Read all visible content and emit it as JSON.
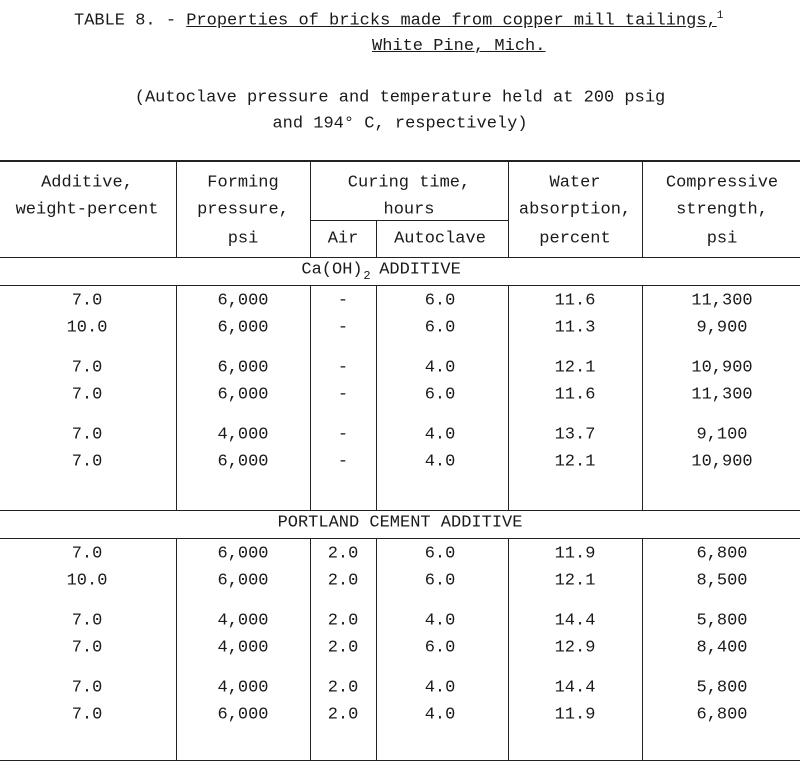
{
  "title": {
    "label": "TABLE 8. -",
    "text": "Properties of bricks made from copper mill tailings,",
    "footnote": "1",
    "line2": "White Pine, Mich."
  },
  "subtitle": [
    "(Autoclave pressure and temperature held at 200 psig",
    "and 194° C, respectively)"
  ],
  "table": {
    "header": {
      "additive": [
        "Additive,",
        "weight-percent"
      ],
      "forming_pressure": [
        "Forming",
        "pressure,",
        "psi"
      ],
      "curing_time": [
        "Curing time,",
        "hours"
      ],
      "curing_air": "Air",
      "curing_autoclave": "Autoclave",
      "water_absorption": [
        "Water",
        "absorption,",
        "percent"
      ],
      "compressive_strength": [
        "Compressive",
        "strength,",
        "psi"
      ]
    },
    "sections": [
      {
        "title": {
          "text": "Ca(OH)",
          "subscript": "2",
          "suffix": "ADDITIVE"
        },
        "groups": [
          [
            [
              "7.0",
              "6,000",
              "-",
              "6.0",
              "11.6",
              "11,300"
            ],
            [
              "10.0",
              "6,000",
              "-",
              "6.0",
              "11.3",
              "9,900"
            ]
          ],
          [
            [
              "7.0",
              "6,000",
              "-",
              "4.0",
              "12.1",
              "10,900"
            ],
            [
              "7.0",
              "6,000",
              "-",
              "6.0",
              "11.6",
              "11,300"
            ]
          ],
          [
            [
              "7.0",
              "4,000",
              "-",
              "4.0",
              "13.7",
              "9,100"
            ],
            [
              "7.0",
              "6,000",
              "-",
              "4.0",
              "12.1",
              "10,900"
            ]
          ]
        ]
      },
      {
        "title": {
          "text": "PORTLAND CEMENT ADDITIVE"
        },
        "groups": [
          [
            [
              "7.0",
              "6,000",
              "2.0",
              "6.0",
              "11.9",
              "6,800"
            ],
            [
              "10.0",
              "6,000",
              "2.0",
              "6.0",
              "12.1",
              "8,500"
            ]
          ],
          [
            [
              "7.0",
              "4,000",
              "2.0",
              "4.0",
              "14.4",
              "5,800"
            ],
            [
              "7.0",
              "4,000",
              "2.0",
              "6.0",
              "12.9",
              "8,400"
            ]
          ],
          [
            [
              "7.0",
              "4,000",
              "2.0",
              "4.0",
              "14.4",
              "5,800"
            ],
            [
              "7.0",
              "6,000",
              "2.0",
              "4.0",
              "11.9",
              "6,800"
            ]
          ]
        ]
      }
    ]
  }
}
